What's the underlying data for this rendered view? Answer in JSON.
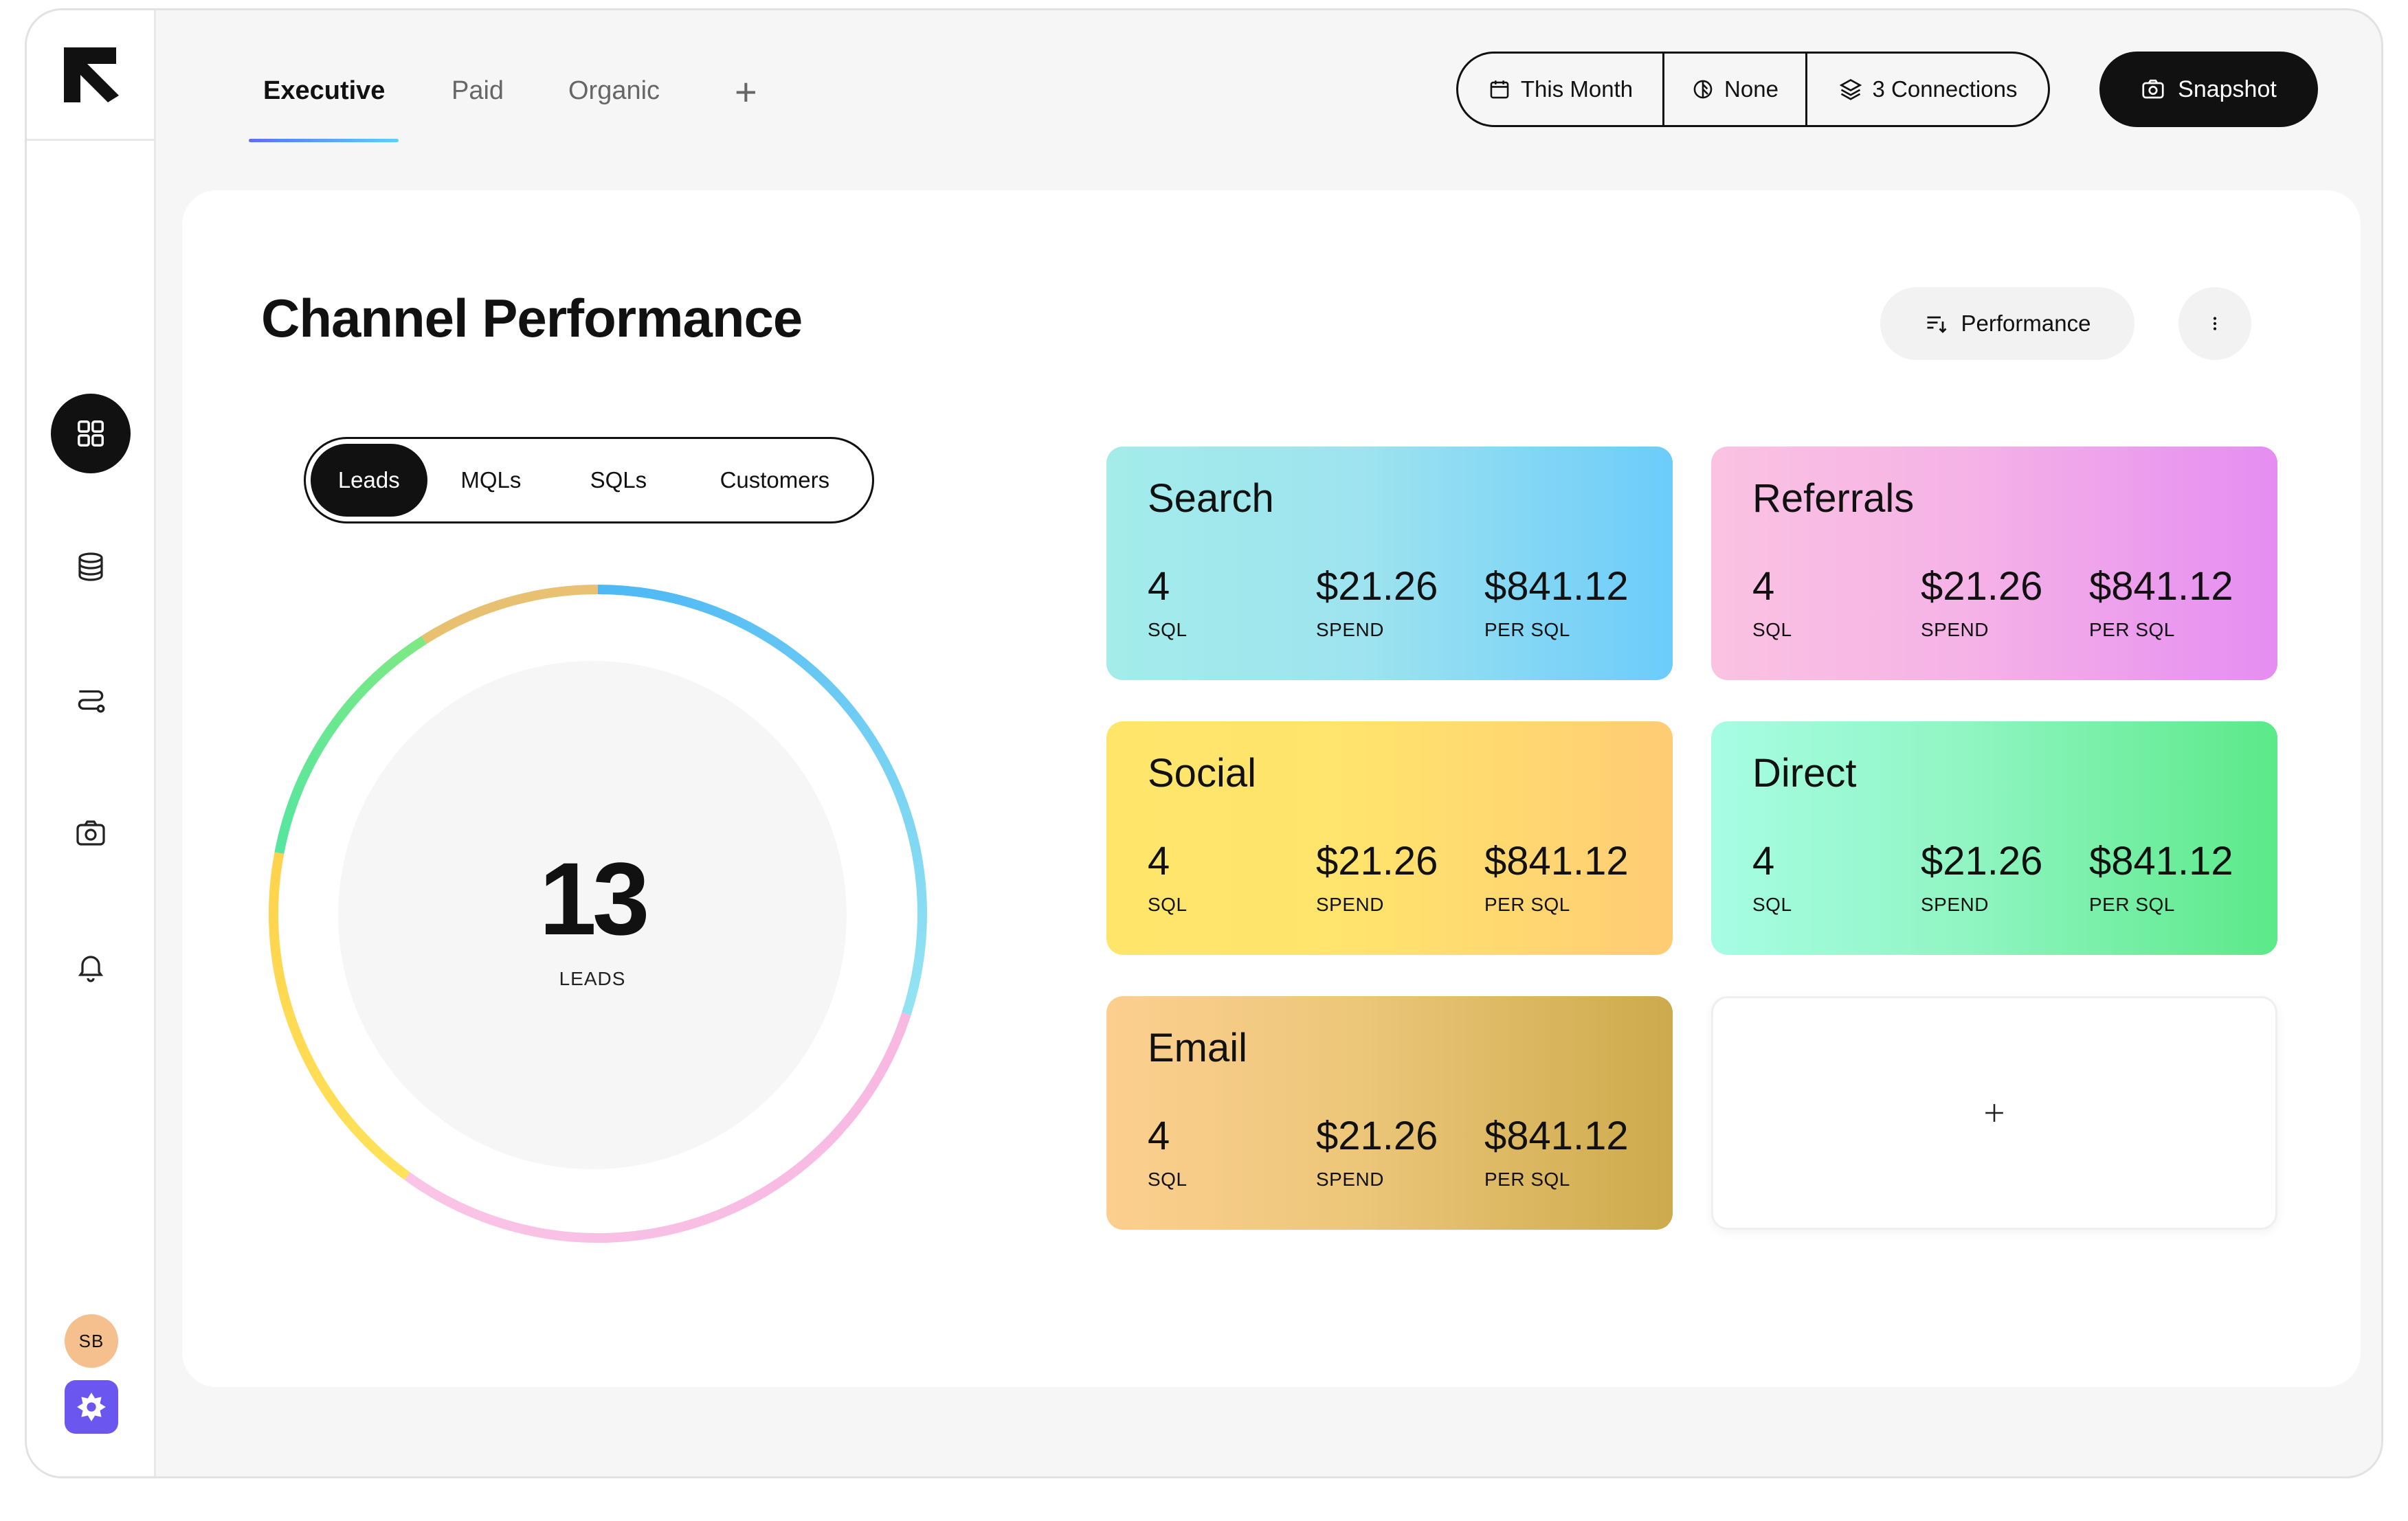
{
  "sidebar": {
    "nav": [
      {
        "icon": "grid-icon",
        "active": true
      },
      {
        "icon": "database-icon",
        "active": false
      },
      {
        "icon": "route-icon",
        "active": false
      },
      {
        "icon": "camera-icon",
        "active": false
      },
      {
        "icon": "bell-icon",
        "active": false
      }
    ],
    "avatar_initials": "SB"
  },
  "tabs": [
    {
      "label": "Executive",
      "active": true
    },
    {
      "label": "Paid",
      "active": false
    },
    {
      "label": "Organic",
      "active": false
    }
  ],
  "filters": {
    "date": "This Month",
    "comparison": "None",
    "connections": "3 Connections"
  },
  "snapshot_label": "Snapshot",
  "panel": {
    "title": "Channel Performance",
    "sort_label": "Performance",
    "metric_tabs": [
      {
        "label": "Leads",
        "active": true
      },
      {
        "label": "MQLs",
        "active": false
      },
      {
        "label": "SQLs",
        "active": false
      },
      {
        "label": "Customers",
        "active": false
      }
    ],
    "total_value": "13",
    "total_label": "LEADS"
  },
  "channels": [
    {
      "name": "Search",
      "count": "4",
      "count_label": "SQL",
      "spend": "$21.26",
      "spend_label": "SPEND",
      "per": "$841.12",
      "per_label": "PER SQL"
    },
    {
      "name": "Referrals",
      "count": "4",
      "count_label": "SQL",
      "spend": "$21.26",
      "spend_label": "SPEND",
      "per": "$841.12",
      "per_label": "PER SQL"
    },
    {
      "name": "Social",
      "count": "4",
      "count_label": "SQL",
      "spend": "$21.26",
      "spend_label": "SPEND",
      "per": "$841.12",
      "per_label": "PER SQL"
    },
    {
      "name": "Direct",
      "count": "4",
      "count_label": "SQL",
      "spend": "$21.26",
      "spend_label": "SPEND",
      "per": "$841.12",
      "per_label": "PER SQL"
    },
    {
      "name": "Email",
      "count": "4",
      "count_label": "SQL",
      "spend": "$21.26",
      "spend_label": "SPEND",
      "per": "$841.12",
      "per_label": "PER SQL"
    }
  ],
  "donut_segments": [
    {
      "channel": "Search",
      "share": 0.3,
      "color_start": "#4db8f5",
      "color_end": "#93e3f2"
    },
    {
      "channel": "Referrals",
      "share": 0.3,
      "color_start": "#f7b8e2",
      "color_end": "#f9c4e6"
    },
    {
      "channel": "Social",
      "share": 0.18,
      "color_start": "#ffe35a",
      "color_end": "#ffd24d"
    },
    {
      "channel": "Direct",
      "share": 0.13,
      "color_start": "#55e6a0",
      "color_end": "#7de983"
    },
    {
      "channel": "Email",
      "share": 0.09,
      "color_start": "#e7c070",
      "color_end": "#e9c172"
    }
  ],
  "colors": {
    "accent_dark": "#111111",
    "workspace_badge": "#6b57f0",
    "avatar_bg": "#f5c08e"
  }
}
